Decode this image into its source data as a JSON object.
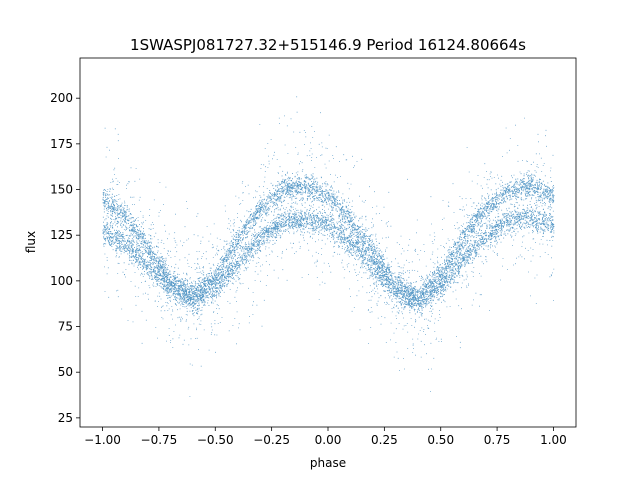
{
  "chart_data": {
    "type": "scatter",
    "title": "1SWASPJ081727.32+515146.9 Period 16124.80664s",
    "xlabel": "phase",
    "ylabel": "flux",
    "xlim": [
      -1.1,
      1.1
    ],
    "ylim": [
      20,
      222
    ],
    "xticks": [
      -1.0,
      -0.75,
      -0.5,
      -0.25,
      0.0,
      0.25,
      0.5,
      0.75,
      1.0
    ],
    "xtick_labels": [
      "−1.00",
      "−0.75",
      "−0.50",
      "−0.25",
      "0.00",
      "0.25",
      "0.50",
      "0.75",
      "1.00"
    ],
    "yticks": [
      25,
      50,
      75,
      100,
      125,
      150,
      175,
      200
    ],
    "ytick_labels": [
      "25",
      "50",
      "75",
      "100",
      "125",
      "150",
      "175",
      "200"
    ],
    "grid": false,
    "marker_color": "#1f77b4",
    "series": [
      {
        "x": [
          -1.0,
          -0.9,
          -0.8,
          -0.7,
          -0.6,
          -0.5,
          -0.4,
          -0.3,
          -0.2,
          -0.1,
          0.0,
          0.1,
          0.2,
          0.3,
          0.4,
          0.5,
          0.6,
          0.7,
          0.8,
          0.9,
          1.0
        ],
        "y": [
          145,
          135,
          118,
          100,
          93,
          103,
          124,
          140,
          150,
          152,
          147,
          133,
          116,
          98,
          91,
          104,
          124,
          140,
          150,
          152,
          147
        ]
      },
      {
        "x": [
          -1.0,
          -0.9,
          -0.8,
          -0.7,
          -0.6,
          -0.5,
          -0.4,
          -0.3,
          -0.2,
          -0.1,
          0.0,
          0.1,
          0.2,
          0.3,
          0.4,
          0.5,
          0.6,
          0.7,
          0.8,
          0.9,
          1.0
        ],
        "y": [
          128,
          120,
          108,
          96,
          89,
          96,
          110,
          124,
          132,
          134,
          131,
          121,
          107,
          94,
          88,
          97,
          112,
          125,
          133,
          135,
          130
        ]
      }
    ]
  }
}
